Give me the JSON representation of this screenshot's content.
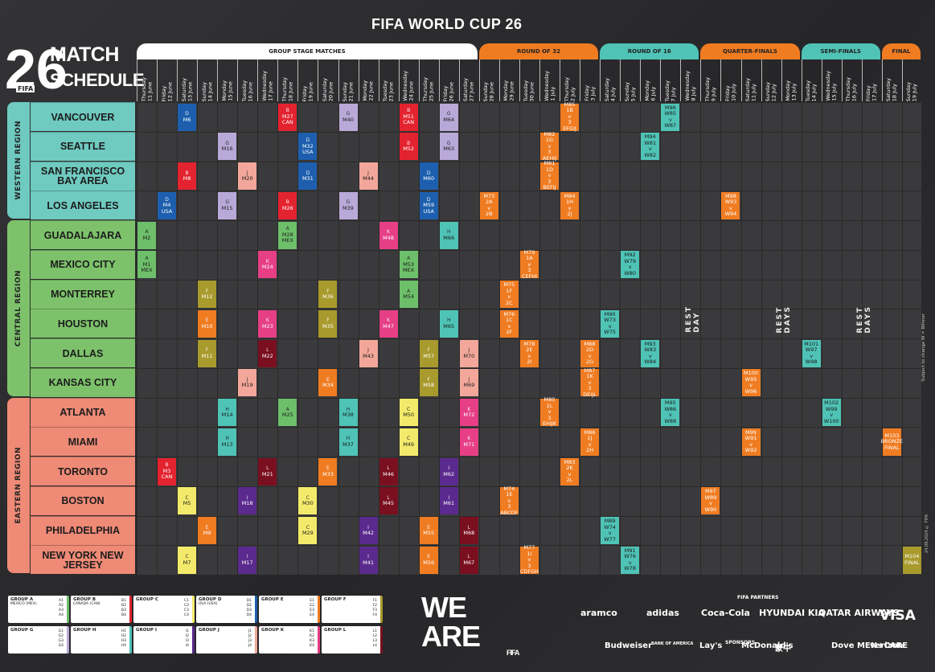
{
  "header": {
    "title": "FIFA WORLD CUP 26"
  },
  "logo": {
    "number": "26",
    "line1": "MATCH",
    "line2": "SCHEDULE",
    "fifa": "FIFA"
  },
  "stages": [
    {
      "label": "GROUP STAGE MATCHES",
      "color": "#ffffff"
    },
    {
      "label": "ROUND OF 32",
      "color": "#f07c22"
    },
    {
      "label": "ROUND OF 16",
      "color": "#4fc3b6"
    },
    {
      "label": "QUARTER-FINALS",
      "color": "#f07c22"
    },
    {
      "label": "SEMI-FINALS",
      "color": "#4fc3b6"
    },
    {
      "label": "FINAL",
      "color": "#f07c22"
    }
  ],
  "days": [
    "Thursday\n11 June",
    "Friday\n12 June",
    "Saturday\n13 June",
    "Sunday\n14 June",
    "Monday\n15 June",
    "Tuesday\n16 June",
    "Wednesday\n17 June",
    "Thursday\n18 June",
    "Friday\n19 June",
    "Saturday\n20 June",
    "Sunday\n21 June",
    "Monday\n22 June",
    "Tuesday\n23 June",
    "Wednesday\n24 June",
    "Thursday\n25 June",
    "Friday\n26 June",
    "Saturday\n27 June",
    "Sunday\n28 June",
    "Monday\n29 June",
    "Tuesday\n30 June",
    "Wednesday\n1 July",
    "Thursday\n2 July",
    "Friday\n3 July",
    "Saturday\n4 July",
    "Sunday\n5 July",
    "Monday\n6 July",
    "Tuesday\n7 July",
    "Wednesday\n8 July",
    "Thursday\n9 July",
    "Friday\n10 July",
    "Saturday\n11 July",
    "Sunday\n12 July",
    "Monday\n13 July",
    "Tuesday\n14 July",
    "Wednesday\n15 July",
    "Thursday\n16 July",
    "Friday\n17 July",
    "Saturday\n18 July",
    "Sunday\n19 July"
  ],
  "regions": [
    {
      "label": "WESTERN REGION",
      "color": "#6fcac0",
      "rows": 4
    },
    {
      "label": "CENTRAL REGION",
      "color": "#7dc26b",
      "rows": 6
    },
    {
      "label": "EASTERN REGION",
      "color": "#ee8a76",
      "rows": 6
    }
  ],
  "cities": [
    "VANCOUVER",
    "SEATTLE",
    "SAN FRANCISCO BAY AREA",
    "LOS ANGELES",
    "GUADALAJARA",
    "MEXICO CITY",
    "MONTERREY",
    "HOUSTON",
    "DALLAS",
    "KANSAS CITY",
    "ATLANTA",
    "MIAMI",
    "TORONTO",
    "BOSTON",
    "PHILADELPHIA",
    "NEW YORK NEW JERSEY"
  ],
  "group_colors": {
    "A": "#6dbf6a",
    "B": "#e3232f",
    "C": "#f3ea6c",
    "D": "#1d5fae",
    "E": "#f07c22",
    "F": "#a89a2c",
    "G": "#b9a9d8",
    "H": "#4fc3b6",
    "I": "#5b2a8e",
    "J": "#f2a79a",
    "K": "#e63f86",
    "L": "#7a0f1f",
    "R32": "#f07c22",
    "R16": "#4fc3b6",
    "QF": "#f07c22",
    "SF": "#4fc3b6"
  },
  "matches": [
    {
      "r": 0,
      "c": 2,
      "g": "D",
      "t": "M6"
    },
    {
      "r": 0,
      "c": 7,
      "g": "B",
      "t": "M27\nCAN"
    },
    {
      "r": 0,
      "c": 10,
      "g": "G",
      "t": "M40"
    },
    {
      "r": 0,
      "c": 13,
      "g": "B",
      "t": "M51\nCAN"
    },
    {
      "r": 0,
      "c": 15,
      "g": "G",
      "t": "M64"
    },
    {
      "r": 0,
      "c": 21,
      "g": "R32",
      "t": "M85\n1B\nv\n3\nEFGIJ"
    },
    {
      "r": 0,
      "c": 26,
      "g": "R16",
      "t": "M96\nW85\nv\nW87"
    },
    {
      "r": 1,
      "c": 4,
      "g": "G",
      "t": "M16"
    },
    {
      "r": 1,
      "c": 8,
      "g": "D",
      "t": "M32\nUSA"
    },
    {
      "r": 1,
      "c": 13,
      "g": "B",
      "t": "M52"
    },
    {
      "r": 1,
      "c": 15,
      "g": "G",
      "t": "M63"
    },
    {
      "r": 1,
      "c": 20,
      "g": "R32",
      "t": "M82\n1G\nv\n3\nAEHIJ"
    },
    {
      "r": 1,
      "c": 25,
      "g": "R16",
      "t": "M94\nW81\nv\nW82"
    },
    {
      "r": 2,
      "c": 2,
      "g": "B",
      "t": "M8"
    },
    {
      "r": 2,
      "c": 5,
      "g": "J",
      "t": "M20"
    },
    {
      "r": 2,
      "c": 8,
      "g": "D",
      "t": "M31"
    },
    {
      "r": 2,
      "c": 11,
      "g": "J",
      "t": "M44"
    },
    {
      "r": 2,
      "c": 14,
      "g": "D",
      "t": "M60"
    },
    {
      "r": 2,
      "c": 20,
      "g": "R32",
      "t": "M81\n1D\nv\n3\nBEFIJ"
    },
    {
      "r": 3,
      "c": 1,
      "g": "D",
      "t": "M4\nUSA"
    },
    {
      "r": 3,
      "c": 4,
      "g": "G",
      "t": "M15"
    },
    {
      "r": 3,
      "c": 7,
      "g": "B",
      "t": "M26"
    },
    {
      "r": 3,
      "c": 10,
      "g": "G",
      "t": "M39"
    },
    {
      "r": 3,
      "c": 14,
      "g": "D",
      "t": "M59\nUSA"
    },
    {
      "r": 3,
      "c": 17,
      "g": "R32",
      "t": "M73\n2A\nv\n2B"
    },
    {
      "r": 3,
      "c": 21,
      "g": "R32",
      "t": "M84\n1H\nv\n2J"
    },
    {
      "r": 3,
      "c": 29,
      "g": "QF",
      "t": "M98\nW93\nv\nW94"
    },
    {
      "r": 4,
      "c": 0,
      "g": "A",
      "t": "M2"
    },
    {
      "r": 4,
      "c": 7,
      "g": "A",
      "t": "M28\nMEX"
    },
    {
      "r": 4,
      "c": 12,
      "g": "K",
      "t": "M48"
    },
    {
      "r": 4,
      "c": 15,
      "g": "H",
      "t": "M66"
    },
    {
      "r": 5,
      "c": 0,
      "g": "A",
      "t": "M1\nMEX"
    },
    {
      "r": 5,
      "c": 6,
      "g": "K",
      "t": "M24"
    },
    {
      "r": 5,
      "c": 13,
      "g": "A",
      "t": "M53\nMEX"
    },
    {
      "r": 5,
      "c": 19,
      "g": "R32",
      "t": "M79\n1A\nv\n3\nCEFHI"
    },
    {
      "r": 5,
      "c": 24,
      "g": "R16",
      "t": "M92\nW79\nv\nW80"
    },
    {
      "r": 6,
      "c": 3,
      "g": "F",
      "t": "M12"
    },
    {
      "r": 6,
      "c": 9,
      "g": "F",
      "t": "M36"
    },
    {
      "r": 6,
      "c": 13,
      "g": "A",
      "t": "M54"
    },
    {
      "r": 6,
      "c": 18,
      "g": "R32",
      "t": "M75\n1F\nv\n2C"
    },
    {
      "r": 7,
      "c": 3,
      "g": "E",
      "t": "M10"
    },
    {
      "r": 7,
      "c": 6,
      "g": "K",
      "t": "M23"
    },
    {
      "r": 7,
      "c": 9,
      "g": "F",
      "t": "M35"
    },
    {
      "r": 7,
      "c": 12,
      "g": "K",
      "t": "M47"
    },
    {
      "r": 7,
      "c": 15,
      "g": "H",
      "t": "M65"
    },
    {
      "r": 7,
      "c": 18,
      "g": "R32",
      "t": "M76\n1C\nv\n2F"
    },
    {
      "r": 7,
      "c": 23,
      "g": "R16",
      "t": "M90\nW73\nv\nW75"
    },
    {
      "r": 8,
      "c": 3,
      "g": "F",
      "t": "M11"
    },
    {
      "r": 8,
      "c": 6,
      "g": "L",
      "t": "M22"
    },
    {
      "r": 8,
      "c": 11,
      "g": "J",
      "t": "M43"
    },
    {
      "r": 8,
      "c": 14,
      "g": "F",
      "t": "M57"
    },
    {
      "r": 8,
      "c": 16,
      "g": "J",
      "t": "M70"
    },
    {
      "r": 8,
      "c": 19,
      "g": "R32",
      "t": "M78\n2E\nv\n2I"
    },
    {
      "r": 8,
      "c": 22,
      "g": "R32",
      "t": "M88\n2D\nv\n2G"
    },
    {
      "r": 8,
      "c": 25,
      "g": "R16",
      "t": "M93\nW83\nv\nW84"
    },
    {
      "r": 8,
      "c": 33,
      "g": "SF",
      "t": "M101\nW97\nv\nW98"
    },
    {
      "r": 9,
      "c": 5,
      "g": "J",
      "t": "M19"
    },
    {
      "r": 9,
      "c": 9,
      "g": "E",
      "t": "M34"
    },
    {
      "r": 9,
      "c": 14,
      "g": "F",
      "t": "M58"
    },
    {
      "r": 9,
      "c": 16,
      "g": "J",
      "t": "M69"
    },
    {
      "r": 9,
      "c": 22,
      "g": "R32",
      "t": "M87\n1K\nv\n3\nDEIJL"
    },
    {
      "r": 9,
      "c": 30,
      "g": "QF",
      "t": "M100\nW95\nv\nW96"
    },
    {
      "r": 10,
      "c": 4,
      "g": "H",
      "t": "M14"
    },
    {
      "r": 10,
      "c": 7,
      "g": "A",
      "t": "M25"
    },
    {
      "r": 10,
      "c": 10,
      "g": "H",
      "t": "M38"
    },
    {
      "r": 10,
      "c": 13,
      "g": "C",
      "t": "M50"
    },
    {
      "r": 10,
      "c": 16,
      "g": "K",
      "t": "M72"
    },
    {
      "r": 10,
      "c": 20,
      "g": "R32",
      "t": "M80\n1L\nv\n3\nEHIJK"
    },
    {
      "r": 10,
      "c": 26,
      "g": "R16",
      "t": "M95\nW86\nv\nW88"
    },
    {
      "r": 10,
      "c": 34,
      "g": "SF",
      "t": "M102\nW99\nv\nW100"
    },
    {
      "r": 11,
      "c": 4,
      "g": "H",
      "t": "M13"
    },
    {
      "r": 11,
      "c": 10,
      "g": "H",
      "t": "M37"
    },
    {
      "r": 11,
      "c": 13,
      "g": "C",
      "t": "M49"
    },
    {
      "r": 11,
      "c": 16,
      "g": "K",
      "t": "M71"
    },
    {
      "r": 11,
      "c": 22,
      "g": "R32",
      "t": "M86\n1J\nv\n2H"
    },
    {
      "r": 11,
      "c": 30,
      "g": "QF",
      "t": "M99\nW91\nv\nW92"
    },
    {
      "r": 11,
      "c": 37,
      "g": "R32",
      "t": "M103\nBRONZE\nFINAL"
    },
    {
      "r": 12,
      "c": 1,
      "g": "B",
      "t": "M3\nCAN"
    },
    {
      "r": 12,
      "c": 6,
      "g": "L",
      "t": "M21"
    },
    {
      "r": 12,
      "c": 9,
      "g": "E",
      "t": "M33"
    },
    {
      "r": 12,
      "c": 12,
      "g": "L",
      "t": "M46"
    },
    {
      "r": 12,
      "c": 15,
      "g": "I",
      "t": "M62"
    },
    {
      "r": 12,
      "c": 21,
      "g": "R32",
      "t": "M83\n2K\nv\n2L"
    },
    {
      "r": 13,
      "c": 2,
      "g": "C",
      "t": "M5"
    },
    {
      "r": 13,
      "c": 5,
      "g": "I",
      "t": "M18"
    },
    {
      "r": 13,
      "c": 8,
      "g": "C",
      "t": "M30"
    },
    {
      "r": 13,
      "c": 12,
      "g": "L",
      "t": "M45"
    },
    {
      "r": 13,
      "c": 15,
      "g": "I",
      "t": "M61"
    },
    {
      "r": 13,
      "c": 18,
      "g": "R32",
      "t": "M74\n1E\nv\n3\nABCDF"
    },
    {
      "r": 13,
      "c": 28,
      "g": "QF",
      "t": "M97\nW89\nv\nW90"
    },
    {
      "r": 14,
      "c": 3,
      "g": "E",
      "t": "M9"
    },
    {
      "r": 14,
      "c": 8,
      "g": "C",
      "t": "M29"
    },
    {
      "r": 14,
      "c": 11,
      "g": "I",
      "t": "M42"
    },
    {
      "r": 14,
      "c": 14,
      "g": "E",
      "t": "M55"
    },
    {
      "r": 14,
      "c": 16,
      "g": "L",
      "t": "M68"
    },
    {
      "r": 14,
      "c": 23,
      "g": "R16",
      "t": "M89\nW74\nv\nW77"
    },
    {
      "r": 15,
      "c": 2,
      "g": "C",
      "t": "M7"
    },
    {
      "r": 15,
      "c": 5,
      "g": "I",
      "t": "M17"
    },
    {
      "r": 15,
      "c": 11,
      "g": "I",
      "t": "M41"
    },
    {
      "r": 15,
      "c": 14,
      "g": "E",
      "t": "M56"
    },
    {
      "r": 15,
      "c": 16,
      "g": "L",
      "t": "M67"
    },
    {
      "r": 15,
      "c": 19,
      "g": "R32",
      "t": "M77\n1I\nv\n3\nCDFGH"
    },
    {
      "r": 15,
      "c": 24,
      "g": "R16",
      "t": "M91\nW76\nv\nW78"
    },
    {
      "r": 15,
      "c": 38,
      "g": "F",
      "t": "M104\nFINAL"
    }
  ],
  "rest_days": [
    {
      "label": "REST DAY"
    },
    {
      "label": "REST DAYS"
    },
    {
      "label": "REST DAYS"
    }
  ],
  "side_note": "Subject to change    W = Winner",
  "date_note": "24.09.2024 © FIFA",
  "legend": [
    {
      "title": "GROUP A",
      "sub": "MEXICO (MEX)",
      "teams": [
        "A1",
        "A2",
        "A3",
        "A4"
      ]
    },
    {
      "title": "GROUP B",
      "sub": "CANADA (CAN)",
      "teams": [
        "B1",
        "B2",
        "B3",
        "B4"
      ]
    },
    {
      "title": "GROUP C",
      "sub": "",
      "teams": [
        "C1",
        "C2",
        "C3",
        "C4"
      ]
    },
    {
      "title": "GROUP D",
      "sub": "USA (USA)",
      "teams": [
        "D1",
        "D2",
        "D3",
        "D4"
      ]
    },
    {
      "title": "GROUP E",
      "sub": "",
      "teams": [
        "E1",
        "E2",
        "E3",
        "E4"
      ]
    },
    {
      "title": "GROUP F",
      "sub": "",
      "teams": [
        "F1",
        "F2",
        "F3",
        "F4"
      ]
    },
    {
      "title": "GROUP G",
      "sub": "",
      "teams": [
        "G1",
        "G2",
        "G3",
        "G4"
      ]
    },
    {
      "title": "GROUP H",
      "sub": "",
      "teams": [
        "H1",
        "H2",
        "H3",
        "H4"
      ]
    },
    {
      "title": "GROUP I",
      "sub": "",
      "teams": [
        "I1",
        "I2",
        "I3",
        "I4"
      ]
    },
    {
      "title": "GROUP J",
      "sub": "",
      "teams": [
        "J1",
        "J2",
        "J3",
        "J4"
      ]
    },
    {
      "title": "GROUP K",
      "sub": "",
      "teams": [
        "K1",
        "K2",
        "K3",
        "K4"
      ]
    },
    {
      "title": "GROUP L",
      "sub": "",
      "teams": [
        "L1",
        "L2",
        "L3",
        "L4"
      ]
    }
  ],
  "slogan": {
    "line1": "WE",
    "line2": "ARE",
    "fifa": "FIFA"
  },
  "partners": {
    "label": "FIFA PARTNERS",
    "items": [
      "aramco",
      "adidas",
      "Coca-Cola",
      "HYUNDAI KIA",
      "QATAR AIRWAYS",
      "VISA"
    ]
  },
  "sponsors": {
    "label": "SPONSORS",
    "items": [
      "Budweiser",
      "BANK OF AMERICA",
      "Lay's",
      "McDonald's",
      "蒙牛",
      "Dove MEN+CARE",
      "verizon"
    ]
  }
}
